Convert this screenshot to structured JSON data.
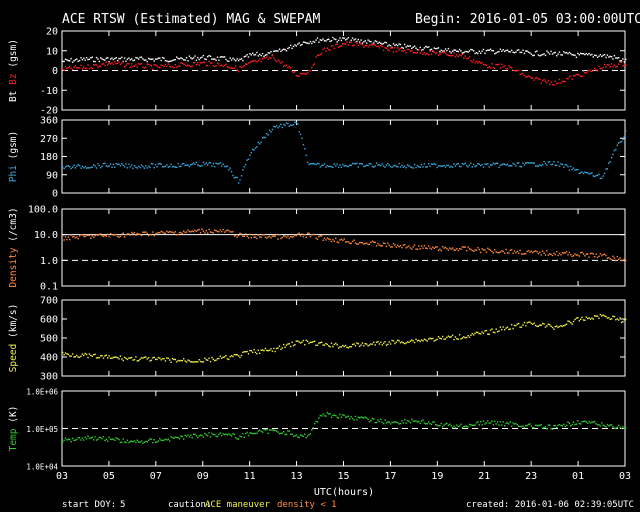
{
  "header": {
    "title": "ACE RTSW (Estimated) MAG & SWEPAM",
    "begin": "Begin: 2016-01-05 03:00:00UTC"
  },
  "footer": {
    "start_doy_label": "start DOY:",
    "start_doy": "5",
    "caution": "caution:",
    "ace_maneuver": "ACE maneuver",
    "density_lt1": "density < 1",
    "created": "created: 2016-01-06 02:39:05UTC"
  },
  "x_axis": {
    "title": "UTC(hours)",
    "ticks": [
      "03",
      "05",
      "07",
      "09",
      "11",
      "13",
      "15",
      "17",
      "19",
      "21",
      "23",
      "01",
      "03"
    ],
    "range_hours": [
      0,
      24
    ]
  },
  "colors": {
    "bt": "#ffffff",
    "bz": "#ff2020",
    "phi": "#3aa8e0",
    "density": "#ff8a3d",
    "speed": "#f2f24a",
    "temp": "#33cc33",
    "grid": "#ffffff"
  },
  "chart_data": [
    {
      "type": "scatter",
      "panel": "mag",
      "ylabel_a": "Bt",
      "ylabel_b": "Bz",
      "ylabel_unit": "(gsm)",
      "ylim": [
        -20,
        20
      ],
      "yticks": [
        "20",
        "10",
        "0",
        "-10",
        "-20"
      ],
      "ytick_values": [
        20,
        10,
        0,
        -10,
        -20
      ],
      "dashed_line": 0,
      "series": [
        {
          "name": "Bt",
          "color": "#ffffff",
          "x": [
            0,
            1,
            2,
            3,
            4,
            5,
            6,
            7,
            7.5,
            8,
            9,
            9.7,
            10,
            10.5,
            11,
            12,
            13,
            14,
            15,
            16,
            17,
            18,
            19,
            20,
            21,
            22,
            23,
            23.5,
            24
          ],
          "values": [
            5,
            6,
            6,
            6,
            6,
            6,
            7,
            6,
            5,
            8,
            9,
            12,
            14,
            15,
            16,
            16,
            15,
            13,
            12,
            11,
            10,
            10,
            10,
            9,
            9,
            8,
            8,
            7,
            5
          ]
        },
        {
          "name": "Bz",
          "color": "#ff2020",
          "x": [
            0,
            1,
            2,
            3,
            4,
            5,
            6,
            7,
            7.5,
            8,
            9,
            9.7,
            10,
            10.5,
            11,
            12,
            13,
            14,
            15,
            16,
            17,
            18,
            19,
            20,
            21,
            22,
            23,
            23.5,
            24
          ],
          "values": [
            1,
            2,
            4,
            3,
            2,
            3,
            4,
            3,
            1,
            4,
            7,
            1,
            -2,
            0,
            10,
            14,
            13,
            11,
            10,
            9,
            8,
            3,
            2,
            -4,
            -6,
            -2,
            2,
            3,
            4
          ]
        }
      ]
    },
    {
      "type": "scatter",
      "panel": "phi",
      "ylabel": "Phi",
      "ylabel_unit": "(gsm)",
      "ylim": [
        0,
        360
      ],
      "yticks": [
        "360",
        "270",
        "180",
        "90",
        "0"
      ],
      "ytick_values": [
        360,
        270,
        180,
        90,
        0
      ],
      "series": [
        {
          "name": "Phi",
          "color": "#3aa8e0",
          "x": [
            0,
            1,
            2,
            3,
            4,
            5,
            6,
            7,
            7.5,
            8,
            9,
            9.7,
            10,
            10.5,
            11,
            12,
            13,
            14,
            15,
            16,
            17,
            18,
            19,
            20,
            21,
            22,
            23,
            23.5,
            24
          ],
          "values": [
            130,
            135,
            140,
            135,
            138,
            140,
            145,
            140,
            60,
            200,
            330,
            340,
            345,
            140,
            140,
            140,
            140,
            140,
            135,
            140,
            140,
            140,
            140,
            145,
            150,
            110,
            80,
            200,
            300
          ]
        }
      ]
    },
    {
      "type": "scatter",
      "panel": "density",
      "ylabel": "Density",
      "ylabel_unit": "(/cm3)",
      "yscale": "log",
      "ylim": [
        0.1,
        100
      ],
      "yticks": [
        "100.0",
        "10.0",
        "1.0",
        "0.1"
      ],
      "ytick_values": [
        100,
        10,
        1,
        0.1
      ],
      "solid_line": 10,
      "dashed_line": 1,
      "series": [
        {
          "name": "Density",
          "color": "#ff8a3d",
          "x": [
            0,
            1,
            2,
            3,
            4,
            5,
            6,
            7,
            7.5,
            8,
            9,
            9.7,
            10,
            10.5,
            11,
            12,
            13,
            14,
            15,
            16,
            17,
            18,
            19,
            20,
            21,
            22,
            23,
            23.5,
            24
          ],
          "values": [
            8,
            9,
            10,
            11,
            12,
            13,
            15,
            14,
            10,
            9,
            9,
            8,
            10,
            10,
            8,
            6,
            5,
            4,
            3.5,
            3,
            3,
            2.6,
            2.4,
            2.1,
            2,
            1.8,
            1.6,
            1.3,
            1.1
          ]
        }
      ]
    },
    {
      "type": "scatter",
      "panel": "speed",
      "ylabel": "Speed",
      "ylabel_unit": "(km/s)",
      "ylim": [
        300,
        700
      ],
      "yticks": [
        "700",
        "600",
        "500",
        "400",
        "300"
      ],
      "ytick_values": [
        700,
        600,
        500,
        400,
        300
      ],
      "series": [
        {
          "name": "Speed",
          "color": "#f2f24a",
          "x": [
            0,
            1,
            2,
            3,
            4,
            5,
            6,
            7,
            7.5,
            8,
            9,
            9.7,
            10,
            10.5,
            11,
            12,
            13,
            14,
            15,
            16,
            17,
            18,
            19,
            20,
            21,
            22,
            23,
            23.5,
            24
          ],
          "values": [
            420,
            410,
            400,
            395,
            390,
            385,
            385,
            400,
            410,
            430,
            440,
            470,
            480,
            480,
            470,
            460,
            470,
            480,
            490,
            500,
            510,
            530,
            560,
            580,
            560,
            600,
            620,
            610,
            590
          ]
        }
      ]
    },
    {
      "type": "scatter",
      "panel": "temp",
      "ylabel": "Temp",
      "ylabel_unit": "(K)",
      "yscale": "log",
      "ylim": [
        10000,
        1000000
      ],
      "yticks": [
        "1.0E+06",
        "1.0E+05",
        "1.0E+04"
      ],
      "ytick_values": [
        1000000,
        100000,
        10000
      ],
      "dashed_line": 100000,
      "series": [
        {
          "name": "Temp",
          "color": "#33cc33",
          "x": [
            0,
            1,
            2,
            3,
            4,
            5,
            6,
            7,
            7.5,
            8,
            9,
            9.7,
            10,
            10.5,
            11,
            12,
            13,
            14,
            15,
            16,
            17,
            18,
            19,
            20,
            21,
            22,
            23,
            23.5,
            24
          ],
          "values": [
            50000,
            60000,
            55000,
            45000,
            50000,
            60000,
            70000,
            75000,
            60000,
            80000,
            90000,
            80000,
            60000,
            70000,
            250000,
            220000,
            180000,
            150000,
            170000,
            130000,
            120000,
            150000,
            140000,
            120000,
            110000,
            160000,
            130000,
            120000,
            110000
          ]
        }
      ]
    }
  ]
}
